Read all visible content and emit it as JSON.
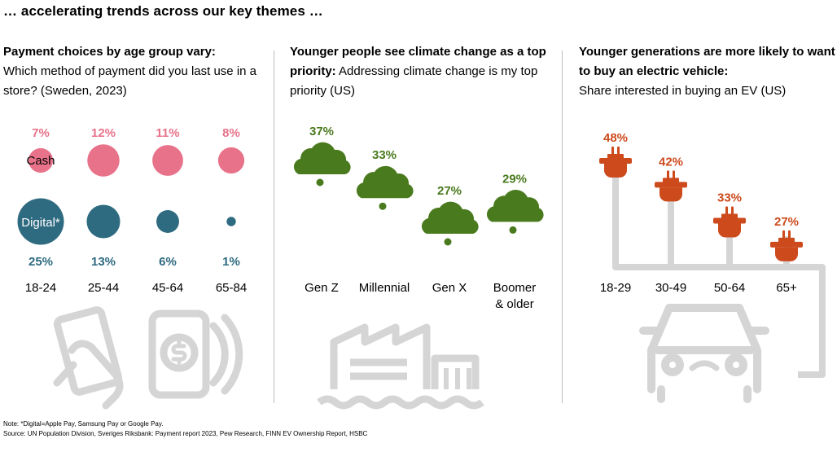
{
  "header": {
    "title": "… accelerating trends across our key themes …"
  },
  "panels": {
    "payment": {
      "title_bold": "Payment choices by age group vary:",
      "title_rest": "Which method of payment did you last use in a store? (Sweden, 2023)"
    },
    "climate": {
      "title_bold": "Younger people see climate change as a top priority:",
      "title_rest": "Addressing climate change is my top priority (US)"
    },
    "ev": {
      "title_bold": "Younger generations are more likely to want to buy an electric vehicle:",
      "title_rest": "Share interested in buying an EV (US)"
    }
  },
  "colors": {
    "cash": "#e8728a",
    "digital": "#2e6a80",
    "climate": "#4a7a1e",
    "ev": "#cc4a1c",
    "icon": "#d5d5d5",
    "divider": "#bdbdbd"
  },
  "icons": [
    "hand-card-icon",
    "phone-payment-icon",
    "factory-icon",
    "car-icon",
    "plug-icon",
    "cloud-icon"
  ],
  "chart_data": [
    {
      "type": "bubble",
      "categories": [
        "18-24",
        "25-44",
        "45-64",
        "65-84"
      ],
      "series": [
        {
          "name": "Cash",
          "values": [
            7,
            12,
            11,
            8
          ],
          "labels": [
            "7%",
            "12%",
            "11%",
            "8%"
          ]
        },
        {
          "name": "Digital*",
          "values": [
            25,
            13,
            6,
            1
          ],
          "labels": [
            "25%",
            "13%",
            "6%",
            "1%"
          ]
        }
      ]
    },
    {
      "type": "scatter",
      "categories": [
        "Gen Z",
        "Millennial",
        "Gen X",
        "Boomer & older"
      ],
      "values": [
        37,
        33,
        27,
        29
      ],
      "labels": [
        "37%",
        "33%",
        "27%",
        "29%"
      ]
    },
    {
      "type": "scatter",
      "categories": [
        "18-29",
        "30-49",
        "50-64",
        "65+"
      ],
      "values": [
        48,
        42,
        33,
        27
      ],
      "labels": [
        "48%",
        "42%",
        "33%",
        "27%"
      ]
    }
  ],
  "footnote": {
    "note": "Note: *Digital=Apple Pay, Samsung Pay or Google Pay.",
    "source": "Source: UN Population Division, Sveriges Riksbank: Payment report 2023, Pew Research, FINN EV Ownership Report, HSBC"
  }
}
